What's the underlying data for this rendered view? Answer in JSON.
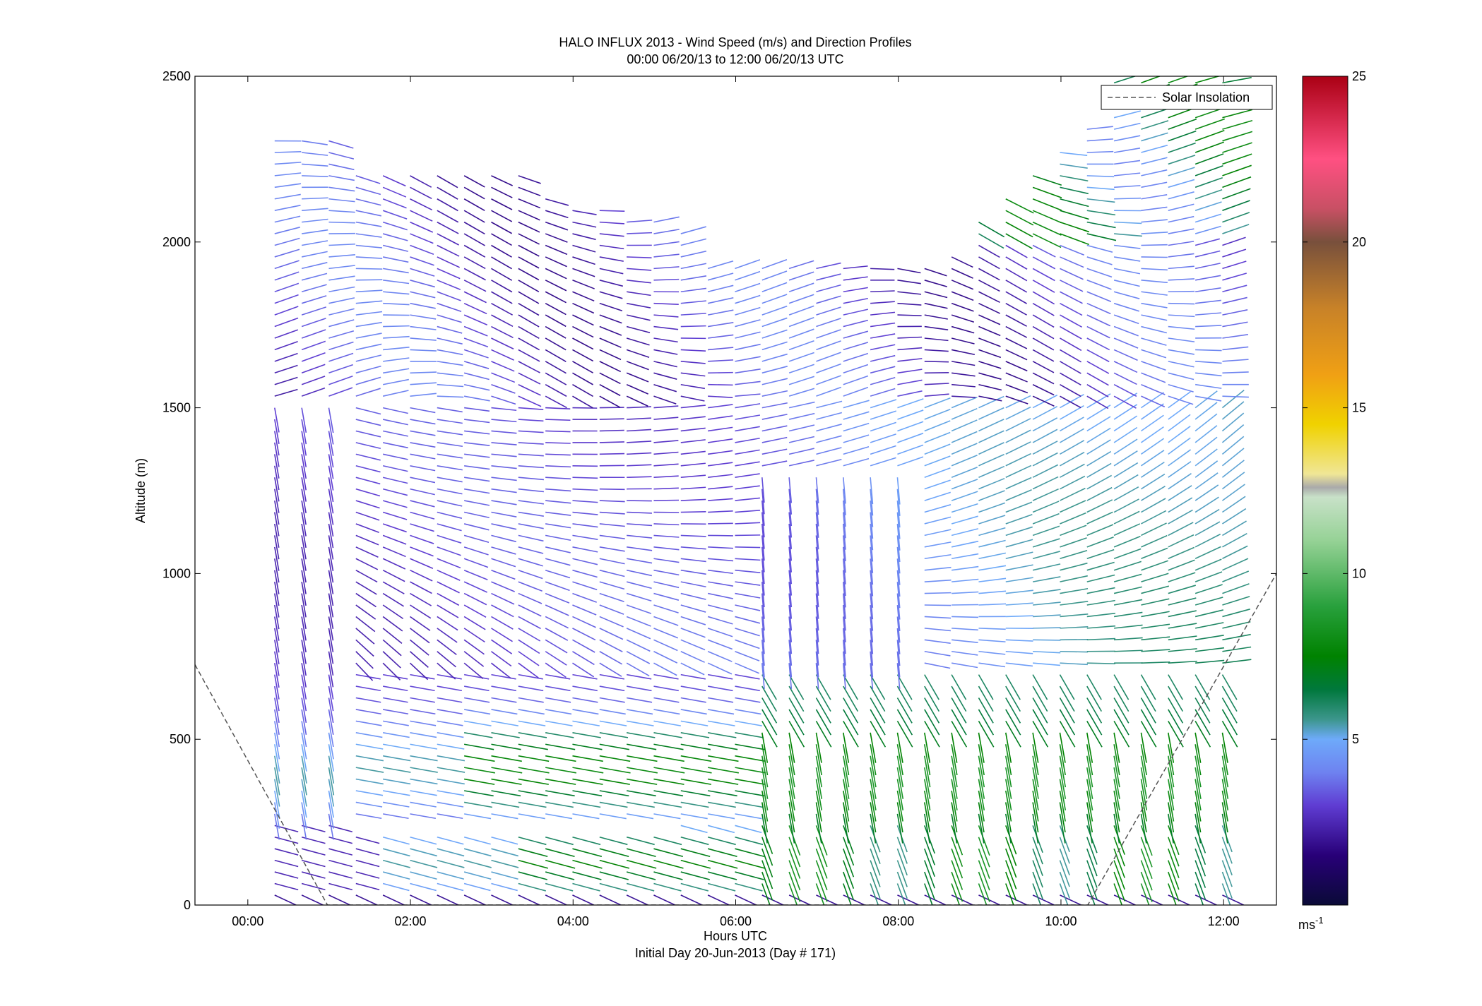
{
  "chart_data": {
    "type": "quiver",
    "title_line1": "HALO INFLUX 2013 - Wind Speed (m/s) and Direction Profiles",
    "title_line2": "00:00 06/20/13 to 12:00 06/20/13  UTC",
    "xlabel": "Hours UTC",
    "xlabel2": "Initial Day 20-Jun-2013 (Day # 171)",
    "ylabel": "Altitude (m)",
    "xlim_hours": [
      -0.65,
      12.65
    ],
    "ylim": [
      0,
      2500
    ],
    "x_ticks": [
      {
        "value": 0,
        "label": "00:00"
      },
      {
        "value": 2,
        "label": "02:00"
      },
      {
        "value": 4,
        "label": "04:00"
      },
      {
        "value": 6,
        "label": "06:00"
      },
      {
        "value": 8,
        "label": "08:00"
      },
      {
        "value": 10,
        "label": "10:00"
      },
      {
        "value": 12,
        "label": "12:00"
      }
    ],
    "y_ticks": [
      0,
      500,
      1000,
      1500,
      2000,
      2500
    ],
    "profile_times_start_hours": 0.33,
    "profile_times_end_hours": 12.0,
    "profile_interval_hours": 0.333,
    "altitude_bin_m": 35,
    "colorbar": {
      "min": 0,
      "max": 25,
      "ticks": [
        5,
        10,
        15,
        20,
        25
      ],
      "unit": "ms",
      "unit_exponent": "-1"
    },
    "legend": {
      "position": "top-right",
      "entries": [
        {
          "name": "Solar Insolation",
          "style": "dashed",
          "color": "#555555"
        }
      ]
    },
    "solar_insolation": [
      {
        "hours": -0.65,
        "alt": 725
      },
      {
        "hours": 0.98,
        "alt": 0
      },
      {
        "hours": 10.33,
        "alt": 0
      },
      {
        "hours": 12.65,
        "alt": 1000
      }
    ],
    "grid": false
  }
}
